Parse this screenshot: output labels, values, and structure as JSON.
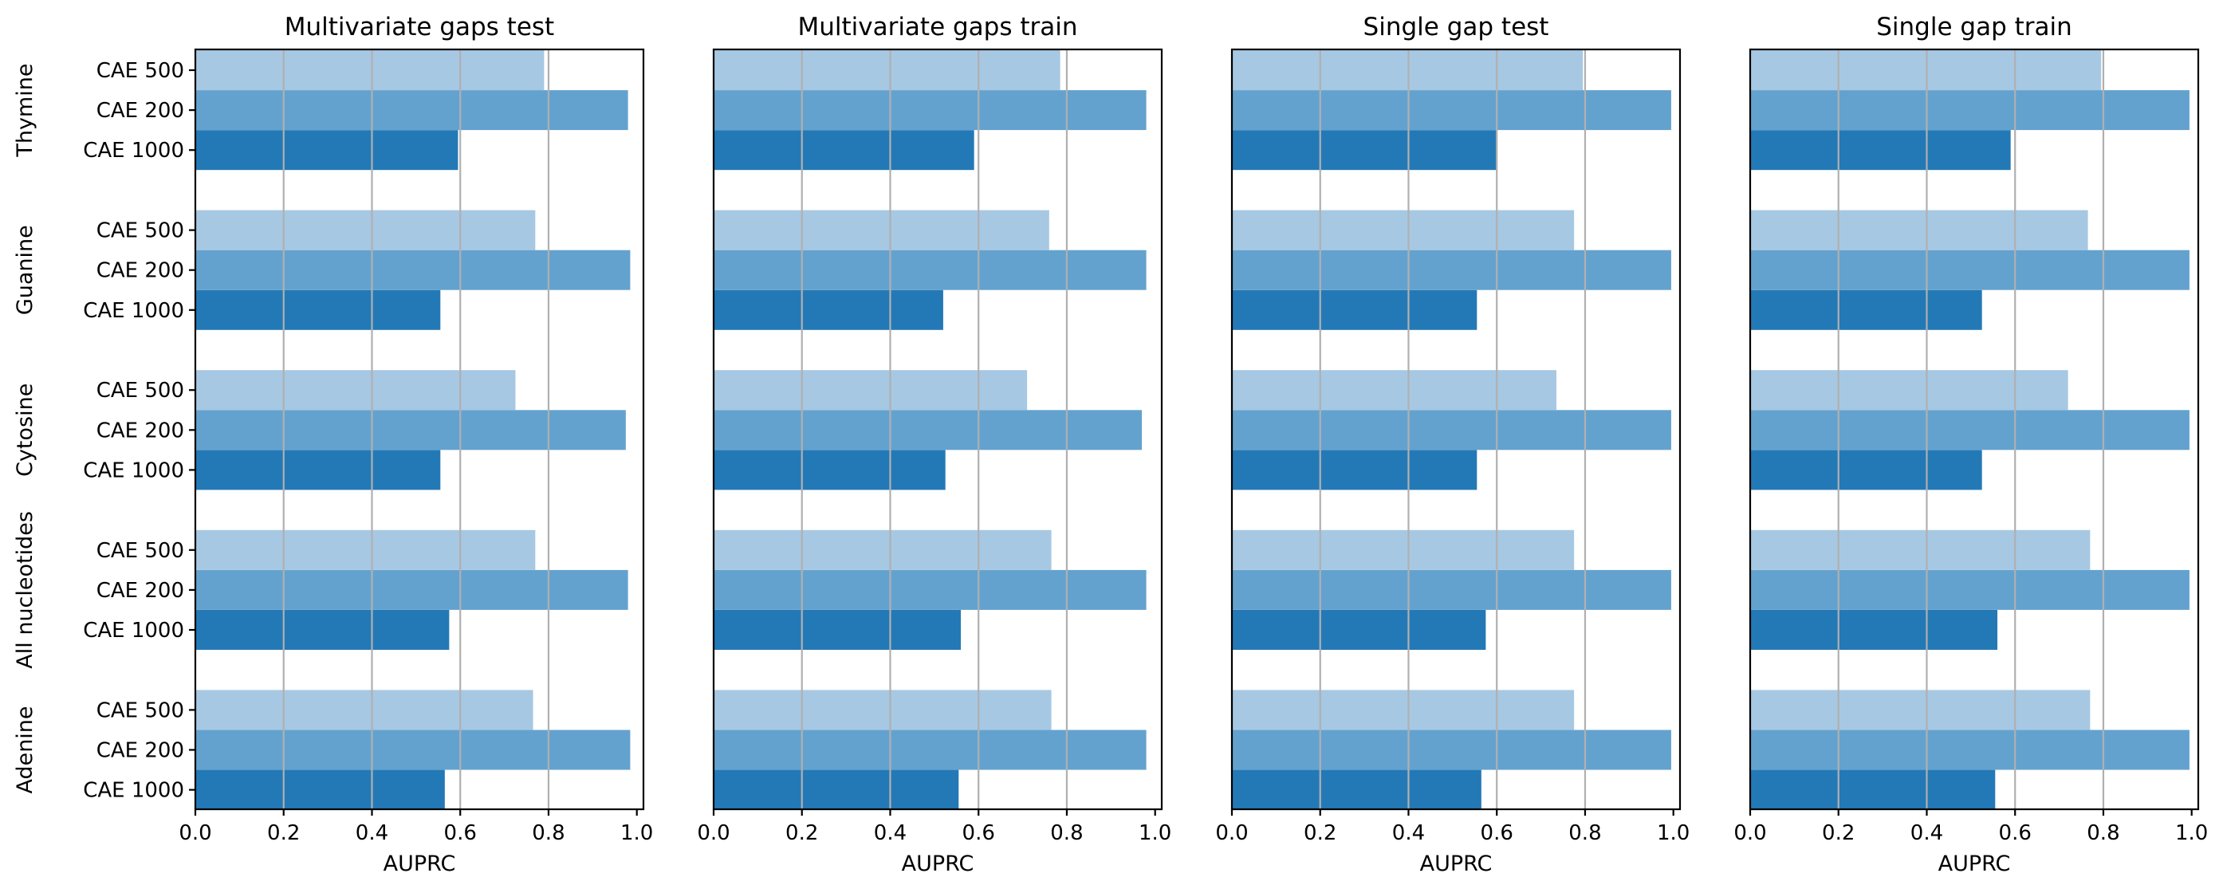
{
  "chart_data": {
    "type": "bar",
    "orientation": "horizontal",
    "groups": [
      "Thymine",
      "Guanine",
      "Cytosine",
      "All nucleotides",
      "Adenine"
    ],
    "bars_per_group": [
      "CAE 500",
      "CAE 200",
      "CAE 1000"
    ],
    "bar_colors": [
      "#a6c8e3",
      "#63a2cf",
      "#2379b6"
    ],
    "xlabel": "AUPRC",
    "xlim": [
      0,
      1
    ],
    "xticks": [
      "0.0",
      "0.2",
      "0.4",
      "0.6",
      "0.8",
      "1.0"
    ],
    "grid": "vertical",
    "panels": [
      {
        "title": "Multivariate gaps test",
        "values": {
          "Thymine": [
            0.79,
            0.98,
            0.595
          ],
          "Guanine": [
            0.77,
            0.985,
            0.555
          ],
          "Cytosine": [
            0.725,
            0.975,
            0.555
          ],
          "All nucleotides": [
            0.77,
            0.98,
            0.575
          ],
          "Adenine": [
            0.765,
            0.985,
            0.565
          ]
        }
      },
      {
        "title": "Multivariate gaps train",
        "values": {
          "Thymine": [
            0.785,
            0.98,
            0.59
          ],
          "Guanine": [
            0.76,
            0.98,
            0.52
          ],
          "Cytosine": [
            0.71,
            0.97,
            0.525
          ],
          "All nucleotides": [
            0.765,
            0.98,
            0.56
          ],
          "Adenine": [
            0.765,
            0.98,
            0.555
          ]
        }
      },
      {
        "title": "Single gap test",
        "values": {
          "Thymine": [
            0.795,
            0.995,
            0.6
          ],
          "Guanine": [
            0.775,
            0.995,
            0.555
          ],
          "Cytosine": [
            0.735,
            0.995,
            0.555
          ],
          "All nucleotides": [
            0.775,
            0.995,
            0.575
          ],
          "Adenine": [
            0.775,
            0.995,
            0.565
          ]
        }
      },
      {
        "title": "Single gap train",
        "values": {
          "Thymine": [
            0.795,
            0.995,
            0.59
          ],
          "Guanine": [
            0.765,
            0.995,
            0.525
          ],
          "Cytosine": [
            0.72,
            0.995,
            0.525
          ],
          "All nucleotides": [
            0.77,
            0.995,
            0.56
          ],
          "Adenine": [
            0.77,
            0.995,
            0.555
          ]
        }
      }
    ]
  }
}
